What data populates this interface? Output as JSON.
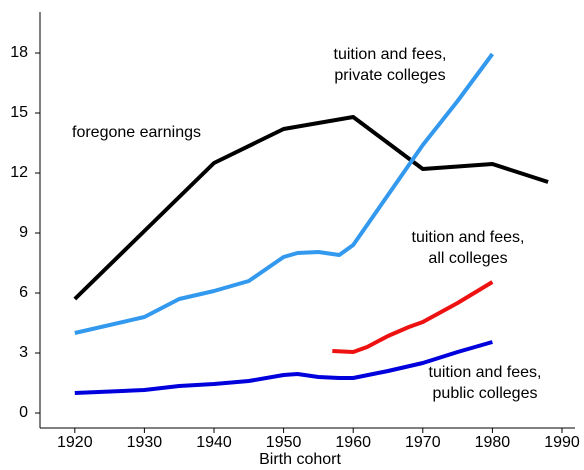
{
  "chart_data": {
    "type": "line",
    "x_label": "Birth cohort",
    "xlim": [
      1915,
      1990
    ],
    "ylim": [
      -0.75,
      20
    ],
    "xticks": [
      1920,
      1930,
      1940,
      1950,
      1960,
      1970,
      1980,
      1990
    ],
    "yticks": [
      0,
      3,
      6,
      9,
      12,
      15,
      18
    ],
    "series": [
      {
        "name": [
          "foregone earnings"
        ],
        "color": "#000000",
        "x": [
          1920,
          1930,
          1940,
          1950,
          1960,
          1970,
          1980,
          1988
        ],
        "values": [
          5.7,
          9.1,
          12.5,
          14.2,
          14.8,
          12.2,
          12.45,
          11.55
        ]
      },
      {
        "name": [
          "tuition and fees,",
          "private colleges"
        ],
        "color": "#3399ee",
        "x": [
          1920,
          1930,
          1935,
          1940,
          1945,
          1950,
          1952,
          1955,
          1957,
          1958,
          1960,
          1965,
          1970,
          1975,
          1980
        ],
        "values": [
          4.0,
          4.8,
          5.7,
          6.1,
          6.6,
          7.8,
          8.0,
          8.05,
          7.95,
          7.9,
          8.4,
          10.9,
          13.4,
          15.6,
          17.95
        ]
      },
      {
        "name": [
          "tuition and fees,",
          "all colleges"
        ],
        "color": "#ee1111",
        "x": [
          1957,
          1960,
          1962,
          1965,
          1968,
          1970,
          1975,
          1980
        ],
        "values": [
          3.1,
          3.05,
          3.3,
          3.85,
          4.3,
          4.55,
          5.5,
          6.55
        ]
      },
      {
        "name": [
          "tuition and fees,",
          "public colleges"
        ],
        "color": "#0000dd",
        "x": [
          1920,
          1930,
          1935,
          1940,
          1945,
          1950,
          1952,
          1955,
          1958,
          1960,
          1965,
          1970,
          1975,
          1980
        ],
        "values": [
          1.0,
          1.15,
          1.35,
          1.45,
          1.6,
          1.9,
          1.95,
          1.8,
          1.75,
          1.75,
          2.1,
          2.5,
          3.05,
          3.55
        ]
      }
    ]
  }
}
